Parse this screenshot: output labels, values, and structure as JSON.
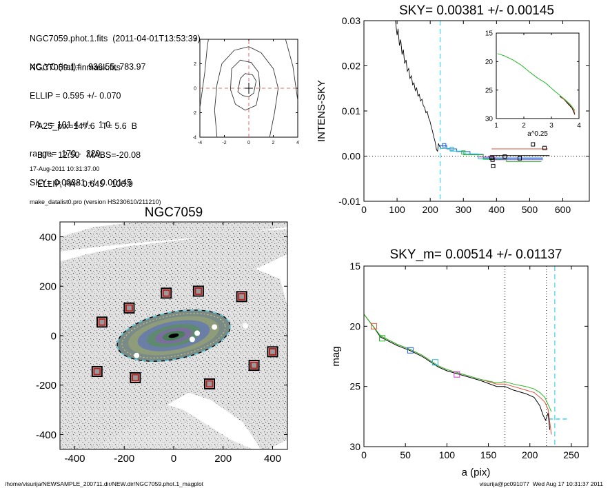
{
  "header": {
    "lines_a": [
      "NGC7059.phot.1.fits  (2011-04-01T13:53:39)",
      "NGC7059.1.finmask.fits"
    ],
    "lines_b": [
      "XC,YC (iraf)=   936.55, 783.97",
      "ELLIP = 0.595 +/- 0.070",
      "PA    = 101.4 +/-   1.0",
      "range=  170.-  220.",
      "SKY= 0.00381 +/- 0.00145"
    ],
    "lines_c": [
      "A25_pix=147.6   T= 5.6  B",
      "BT=  12.50   MABS=-20.08",
      "ELLIP, PA= 0.645   100.9"
    ],
    "lines_d": [
      "17-Aug-2011 10:31:37.00",
      "make_datalist0.pro (version HS230610/211210)"
    ]
  },
  "footer": {
    "path": "/home/visurija/NEWSAMPLE_200711.dir/NEW.dir/NGC7059.phot.1_magplot",
    "stamp": "visurija@pc091077  Wed Aug 17 10:31:37 2011"
  },
  "chart_data": [
    {
      "id": "contour",
      "type": "contour",
      "xlim": [
        -4,
        4
      ],
      "ylim": [
        -4,
        4
      ],
      "xticks": [
        "-4",
        "-2",
        "0",
        "2",
        "4"
      ],
      "yticks": [
        "-4",
        "-2",
        "0",
        "2",
        "4"
      ],
      "crosshair": [
        0,
        0
      ],
      "center_mark": [
        0,
        0
      ],
      "contours": [
        [
          [
            -0.9,
            -0.3
          ],
          [
            -0.7,
            0.8
          ],
          [
            -0.3,
            1.2
          ],
          [
            0.3,
            1.1
          ],
          [
            0.6,
            0.6
          ],
          [
            0.4,
            -0.4
          ],
          [
            0.0,
            -0.7
          ],
          [
            -0.5,
            -0.6
          ],
          [
            -0.9,
            -0.3
          ]
        ],
        [
          [
            -1.5,
            -0.1
          ],
          [
            -1.4,
            1.6
          ],
          [
            -0.7,
            2.3
          ],
          [
            0.2,
            2.1
          ],
          [
            0.8,
            1.3
          ],
          [
            0.9,
            0.0
          ],
          [
            0.6,
            -1.4
          ],
          [
            -0.3,
            -1.8
          ],
          [
            -1.1,
            -1.3
          ],
          [
            -1.5,
            -0.1
          ]
        ],
        [
          [
            -2.6,
            -4.0
          ],
          [
            -2.8,
            -1.8
          ],
          [
            -2.6,
            0.3
          ],
          [
            -2.2,
            2.0
          ],
          [
            -1.2,
            3.1
          ],
          [
            0.0,
            3.4
          ],
          [
            1.0,
            2.9
          ],
          [
            2.0,
            1.6
          ],
          [
            2.4,
            0.0
          ],
          [
            2.1,
            -2.0
          ],
          [
            1.7,
            -4.0
          ]
        ],
        [
          [
            -4.0,
            -1.6
          ],
          [
            -3.6,
            1.3
          ],
          [
            -3.4,
            3.4
          ],
          [
            -3.3,
            4.0
          ]
        ],
        [
          [
            3.0,
            4.0
          ],
          [
            3.6,
            1.8
          ],
          [
            4.0,
            -1.0
          ]
        ]
      ]
    },
    {
      "id": "sky",
      "type": "line",
      "title": "SKY= 0.00381 +/- 0.00145",
      "ylabel": "INTENS-SKY",
      "xlim": [
        0,
        680
      ],
      "ylim": [
        -0.01,
        0.03
      ],
      "xticks": [
        0,
        100,
        200,
        300,
        400,
        500,
        600
      ],
      "yticks": [
        {
          "value": -0.01,
          "label": "-0.01"
        },
        {
          "value": 0.0,
          "label": "0.00"
        },
        {
          "value": 0.01,
          "label": "0.01"
        },
        {
          "value": 0.02,
          "label": "0.02"
        },
        {
          "value": 0.03,
          "label": "0.03"
        }
      ],
      "zero_line": 0.0,
      "vline": 230,
      "profile": [
        [
          95,
          0.03
        ],
        [
          100,
          0.0268
        ],
        [
          103,
          0.0282
        ],
        [
          107,
          0.0245
        ],
        [
          111,
          0.0258
        ],
        [
          115,
          0.0225
        ],
        [
          119,
          0.0236
        ],
        [
          123,
          0.0205
        ],
        [
          127,
          0.0213
        ],
        [
          131,
          0.0188
        ],
        [
          135,
          0.0194
        ],
        [
          139,
          0.0172
        ],
        [
          143,
          0.0178
        ],
        [
          147,
          0.0158
        ],
        [
          151,
          0.0162
        ],
        [
          155,
          0.0145
        ],
        [
          159,
          0.0151
        ],
        [
          163,
          0.0133
        ],
        [
          167,
          0.0137
        ],
        [
          171,
          0.0122
        ],
        [
          175,
          0.0126
        ],
        [
          179,
          0.0112
        ],
        [
          183,
          0.0108
        ],
        [
          187,
          0.0096
        ],
        [
          191,
          0.0099
        ],
        [
          195,
          0.0085
        ],
        [
          199,
          0.0078
        ],
        [
          203,
          0.0066
        ],
        [
          207,
          0.0055
        ],
        [
          211,
          0.0042
        ],
        [
          215,
          0.0031
        ],
        [
          219,
          0.0014
        ],
        [
          222,
          0.0011
        ],
        [
          225,
          0.0028
        ],
        [
          228,
          0.0022
        ],
        [
          232,
          0.0019
        ]
      ],
      "steps": [
        {
          "color": "#1f5fd6",
          "points": [
            [
              230,
              0.0023
            ],
            [
              250,
              0.0023
            ],
            [
              250,
              0.0016
            ],
            [
              280,
              0.0016
            ],
            [
              280,
              0.001
            ],
            [
              320,
              0.001
            ],
            [
              320,
              0.0004
            ],
            [
              360,
              0.0004
            ],
            [
              360,
              -0.0004
            ],
            [
              540,
              -0.0004
            ]
          ]
        },
        {
          "color": "#22bde6",
          "points": [
            [
              230,
              0.0017
            ],
            [
              260,
              0.0017
            ],
            [
              260,
              0.0011
            ],
            [
              300,
              0.0011
            ],
            [
              300,
              0.0005
            ],
            [
              345,
              0.0005
            ],
            [
              345,
              -0.0006
            ],
            [
              540,
              -0.0006
            ]
          ]
        },
        {
          "color": "#27b827",
          "points": [
            [
              300,
              0.0003
            ],
            [
              360,
              0.0003
            ],
            [
              360,
              -0.0007
            ],
            [
              430,
              -0.0007
            ],
            [
              430,
              -0.0012
            ],
            [
              535,
              -0.0012
            ]
          ]
        },
        {
          "color": "#c23bc2",
          "points": [
            [
              345,
              -0.0002
            ],
            [
              395,
              -0.0002
            ],
            [
              395,
              -0.0008
            ],
            [
              540,
              -0.0008
            ]
          ]
        },
        {
          "color": "#000000",
          "points": [
            [
              380,
              0.0001
            ],
            [
              560,
              0.0001
            ]
          ]
        },
        {
          "color": "#e0523b",
          "points": [
            [
              385,
              0.0016
            ],
            [
              555,
              0.0016
            ]
          ]
        }
      ],
      "markers": [
        {
          "x": 242,
          "y": 0.0024,
          "color": "#1f5fd6"
        },
        {
          "x": 265,
          "y": 0.0016,
          "color": "#22bde6"
        },
        {
          "x": 300,
          "y": 0.0008,
          "color": "#27b827"
        },
        {
          "x": 385,
          "y": -0.0004,
          "color": "#000000"
        },
        {
          "x": 388,
          "y": -0.0008,
          "color": "#000000"
        },
        {
          "x": 390,
          "y": -0.0022,
          "color": "#000000"
        },
        {
          "x": 425,
          "y": -0.0001,
          "color": "#000000"
        },
        {
          "x": 470,
          "y": -0.0005,
          "color": "#000000"
        },
        {
          "x": 510,
          "y": 0.0026,
          "color": "#000000"
        },
        {
          "x": 545,
          "y": 0.0018,
          "color": "#000000"
        }
      ]
    },
    {
      "id": "inset",
      "type": "line",
      "xlabel": "a^0.25",
      "xlim": [
        1,
        4
      ],
      "ylim": [
        15,
        30
      ],
      "y_inverted": true,
      "xticks": [
        1,
        2,
        3,
        4
      ],
      "yticks": [
        15,
        20,
        25,
        30
      ],
      "series": [
        {
          "color": "#000000",
          "points": [
            [
              3.3,
              26.1
            ],
            [
              3.45,
              26.6
            ],
            [
              3.6,
              27.4
            ],
            [
              3.75,
              28.2
            ],
            [
              3.85,
              29.3
            ]
          ]
        },
        {
          "color": "#e0523b",
          "points": [
            [
              3.35,
              26.3
            ],
            [
              3.5,
              26.8
            ],
            [
              3.62,
              27.3
            ],
            [
              3.75,
              28.0
            ],
            [
              3.85,
              29.0
            ]
          ]
        },
        {
          "color": "#27b827",
          "points": [
            [
              1.05,
              18.6
            ],
            [
              1.3,
              19.0
            ],
            [
              1.6,
              19.7
            ],
            [
              1.9,
              20.6
            ],
            [
              2.2,
              21.8
            ],
            [
              2.5,
              22.9
            ],
            [
              2.8,
              23.8
            ],
            [
              3.1,
              25.1
            ],
            [
              3.3,
              25.9
            ],
            [
              3.5,
              26.7
            ],
            [
              3.7,
              27.6
            ],
            [
              3.85,
              28.6
            ]
          ]
        }
      ]
    },
    {
      "id": "image",
      "type": "image",
      "title": "NGC7059",
      "xlim": [
        -460,
        460
      ],
      "ylim": [
        -460,
        460
      ],
      "xticks": [
        -400,
        -200,
        0,
        200,
        400
      ],
      "yticks": [
        -400,
        -200,
        0,
        200,
        400
      ],
      "ellipse_outer": {
        "a": 232,
        "b": 95,
        "angle_deg": 11
      },
      "ellipse_inner": {
        "a": 212,
        "b": 82,
        "angle_deg": 11
      },
      "mask_boxes": [
        {
          "x": -290,
          "y": 55
        },
        {
          "x": -180,
          "y": 112
        },
        {
          "x": -30,
          "y": 172
        },
        {
          "x": 100,
          "y": 180
        },
        {
          "x": 275,
          "y": 158
        },
        {
          "x": -310,
          "y": -145
        },
        {
          "x": -155,
          "y": -170
        },
        {
          "x": 145,
          "y": -195
        },
        {
          "x": 325,
          "y": -120
        },
        {
          "x": 400,
          "y": -65
        }
      ],
      "star_spots": [
        {
          "x": 75,
          "y": -15
        },
        {
          "x": 95,
          "y": 10
        },
        {
          "x": 165,
          "y": 35
        },
        {
          "x": 290,
          "y": 40
        },
        {
          "x": -150,
          "y": -80
        }
      ]
    },
    {
      "id": "mag",
      "type": "line",
      "title": "SKY_m=  0.00514 +/- 0.01137",
      "xlabel": "a (pix)",
      "ylabel": "mag",
      "xlim": [
        0,
        270
      ],
      "ylim": [
        15,
        30
      ],
      "y_inverted": true,
      "xticks": [
        0,
        50,
        100,
        150,
        200,
        250
      ],
      "yticks": [
        15,
        20,
        25,
        30
      ],
      "dotted_vlines": [
        170,
        220
      ],
      "cyan_vline": 230,
      "sky_level": 27.7,
      "sky_level_range": [
        223,
        245
      ],
      "series": [
        {
          "color": "#000000",
          "points": [
            [
              0,
              19.0
            ],
            [
              10,
              19.9
            ],
            [
              20,
              20.9
            ],
            [
              40,
              21.6
            ],
            [
              55,
              22.0
            ],
            [
              70,
              22.5
            ],
            [
              90,
              23.4
            ],
            [
              100,
              23.7
            ],
            [
              120,
              24.1
            ],
            [
              140,
              24.5
            ],
            [
              160,
              25.0
            ],
            [
              170,
              25.0
            ],
            [
              180,
              25.3
            ],
            [
              195,
              25.6
            ],
            [
              205,
              25.9
            ],
            [
              212,
              26.6
            ],
            [
              216,
              27.4
            ],
            [
              219,
              27.8
            ],
            [
              222,
              27.2
            ],
            [
              224,
              28.6
            ]
          ]
        },
        {
          "color": "#e0523b",
          "points": [
            [
              0,
              19.0
            ],
            [
              10,
              19.9
            ],
            [
              20,
              20.8
            ],
            [
              40,
              21.5
            ],
            [
              55,
              21.9
            ],
            [
              70,
              22.4
            ],
            [
              90,
              23.3
            ],
            [
              100,
              23.6
            ],
            [
              120,
              24.0
            ],
            [
              140,
              24.4
            ],
            [
              160,
              24.8
            ],
            [
              170,
              24.8
            ],
            [
              180,
              25.0
            ],
            [
              195,
              25.3
            ],
            [
              205,
              25.5
            ],
            [
              212,
              25.9
            ],
            [
              218,
              26.3
            ],
            [
              222,
              26.9
            ],
            [
              226,
              29.0
            ]
          ]
        },
        {
          "color": "#27b827",
          "points": [
            [
              0,
              19.0
            ],
            [
              10,
              19.9
            ],
            [
              20,
              20.8
            ],
            [
              40,
              21.5
            ],
            [
              55,
              21.9
            ],
            [
              70,
              22.4
            ],
            [
              90,
              23.3
            ],
            [
              100,
              23.6
            ],
            [
              120,
              24.0
            ],
            [
              140,
              24.4
            ],
            [
              160,
              24.7
            ],
            [
              170,
              24.6
            ],
            [
              180,
              24.8
            ],
            [
              195,
              25.0
            ],
            [
              205,
              25.2
            ],
            [
              212,
              25.5
            ],
            [
              218,
              25.9
            ],
            [
              222,
              26.5
            ],
            [
              226,
              27.1
            ]
          ]
        }
      ],
      "markers": [
        {
          "x": 12,
          "y": 20.0,
          "color": "#e0523b"
        },
        {
          "x": 22,
          "y": 21.0,
          "color": "#27b827"
        },
        {
          "x": 56,
          "y": 22.0,
          "color": "#1f5fd6"
        },
        {
          "x": 86,
          "y": 23.0,
          "color": "#22bde6"
        },
        {
          "x": 112,
          "y": 24.0,
          "color": "#c23bc2"
        }
      ]
    }
  ]
}
